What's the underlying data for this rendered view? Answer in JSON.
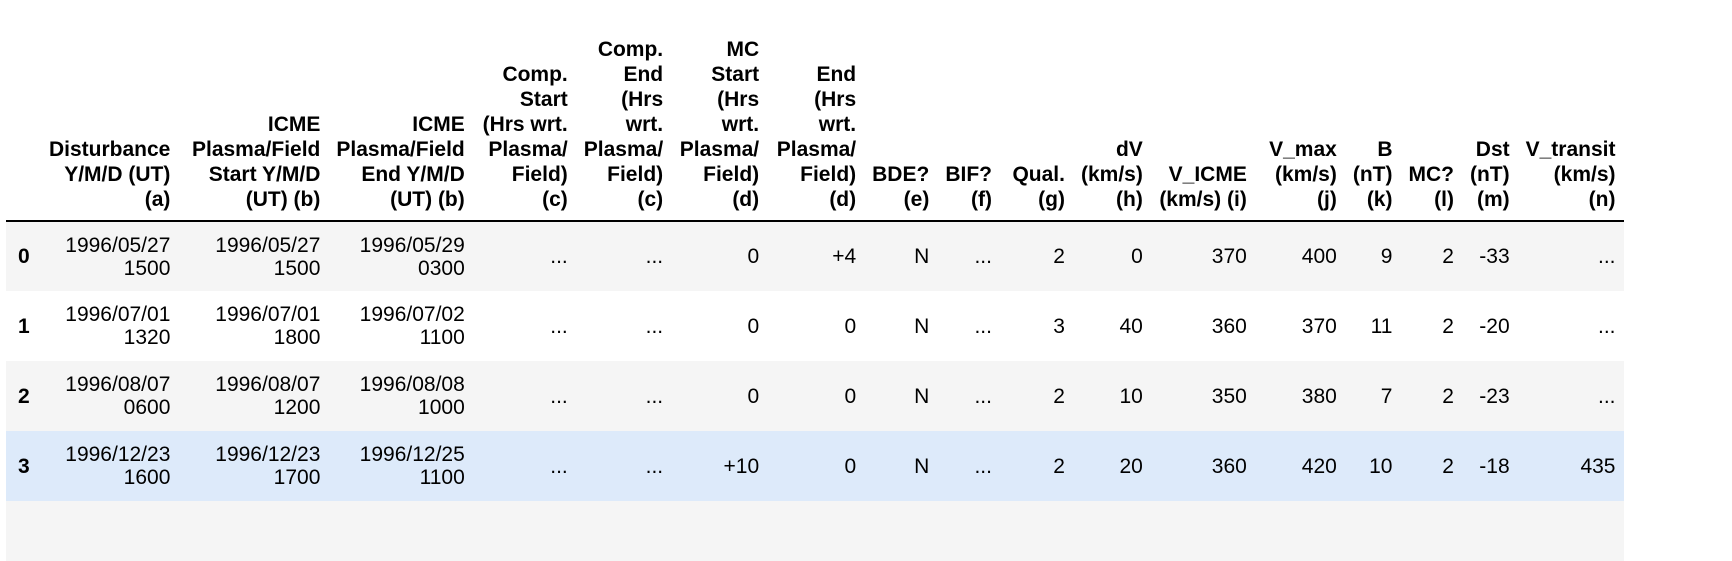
{
  "columns": [
    "Disturbance Y/M/D (UT) (a)",
    "ICME Plasma/Field Start Y/M/D (UT) (b)",
    "ICME Plasma/Field End Y/M/D (UT) (b)",
    "Comp. Start (Hrs wrt. Plasma/ Field) (c)",
    "Comp. End (Hrs wrt. Plasma/ Field) (c)",
    "MC Start (Hrs wrt. Plasma/ Field) (d)",
    "End (Hrs wrt. Plasma/ Field) (d)",
    "BDE? (e)",
    "BIF? (f)",
    "Qual. (g)",
    "dV (km/s) (h)",
    "V_ICME (km/s) (i)",
    "V_max (km/s) (j)",
    "B (nT) (k)",
    "MC? (l)",
    "Dst (nT) (m)",
    "V_transit (km/s) (n)"
  ],
  "rows": [
    {
      "index": "0",
      "cells": {
        "disturbance_date": "1996/05/27",
        "disturbance_time": "1500",
        "start_date": "1996/05/27",
        "start_time": "1500",
        "end_date": "1996/05/29",
        "end_time": "0300",
        "comp_start": "...",
        "comp_end": "...",
        "mc_start": "0",
        "mc_end": "+4",
        "bde": "N",
        "bif": "...",
        "qual": "2",
        "dv": "0",
        "v_icme": "370",
        "v_max": "400",
        "b": "9",
        "mc": "2",
        "dst": "-33",
        "v_transit": "..."
      }
    },
    {
      "index": "1",
      "cells": {
        "disturbance_date": "1996/07/01",
        "disturbance_time": "1320",
        "start_date": "1996/07/01",
        "start_time": "1800",
        "end_date": "1996/07/02",
        "end_time": "1100",
        "comp_start": "...",
        "comp_end": "...",
        "mc_start": "0",
        "mc_end": "0",
        "bde": "N",
        "bif": "...",
        "qual": "3",
        "dv": "40",
        "v_icme": "360",
        "v_max": "370",
        "b": "11",
        "mc": "2",
        "dst": "-20",
        "v_transit": "..."
      }
    },
    {
      "index": "2",
      "cells": {
        "disturbance_date": "1996/08/07",
        "disturbance_time": "0600",
        "start_date": "1996/08/07",
        "start_time": "1200",
        "end_date": "1996/08/08",
        "end_time": "1000",
        "comp_start": "...",
        "comp_end": "...",
        "mc_start": "0",
        "mc_end": "0",
        "bde": "N",
        "bif": "...",
        "qual": "2",
        "dv": "10",
        "v_icme": "350",
        "v_max": "380",
        "b": "7",
        "mc": "2",
        "dst": "-23",
        "v_transit": "..."
      }
    },
    {
      "index": "3",
      "cells": {
        "disturbance_date": "1996/12/23",
        "disturbance_time": "1600",
        "start_date": "1996/12/23",
        "start_time": "1700",
        "end_date": "1996/12/25",
        "end_time": "1100",
        "comp_start": "...",
        "comp_end": "...",
        "mc_start": "+10",
        "mc_end": "0",
        "bde": "N",
        "bif": "...",
        "qual": "2",
        "dv": "20",
        "v_icme": "360",
        "v_max": "420",
        "b": "10",
        "mc": "2",
        "dst": "-18",
        "v_transit": "435"
      }
    }
  ],
  "colors": {
    "header_border": "#000000",
    "odd_row": "#f5f5f5",
    "hover_row": "#ddeafa"
  }
}
